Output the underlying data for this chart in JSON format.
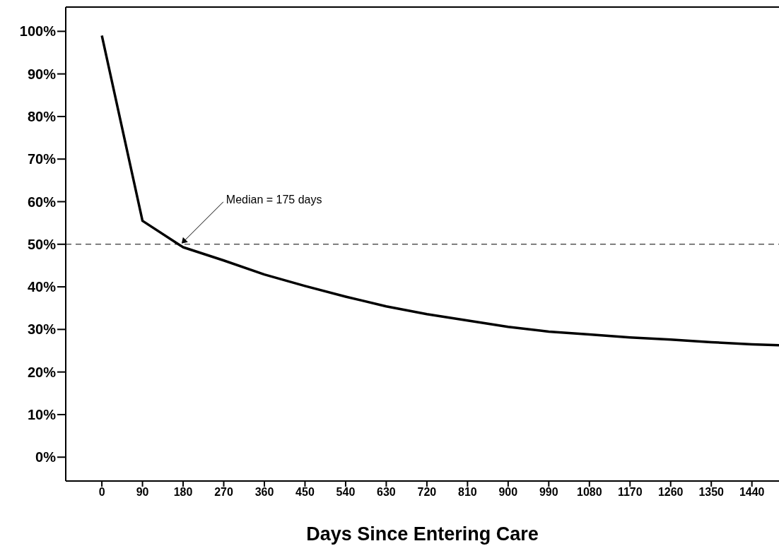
{
  "chart_data": {
    "type": "line",
    "xlabel": "Days Since Entering Care",
    "x": [
      0,
      90,
      180,
      270,
      360,
      450,
      540,
      630,
      720,
      810,
      900,
      990,
      1080,
      1170,
      1260,
      1350,
      1440,
      1500
    ],
    "values": [
      99,
      55.5,
      49.3,
      46.2,
      42.9,
      40.2,
      37.7,
      35.4,
      33.6,
      32.1,
      30.6,
      29.5,
      28.8,
      28.1,
      27.6,
      27.0,
      26.5,
      26.3
    ],
    "color": "#000000",
    "marker": "none",
    "line_style": "solid",
    "xlim": [
      -80,
      1500
    ],
    "xticks": [
      0,
      90,
      180,
      270,
      360,
      450,
      540,
      630,
      720,
      810,
      900,
      990,
      1080,
      1170,
      1260,
      1350,
      1440
    ],
    "ylim": [
      -5.6,
      105.7
    ],
    "yticks": [
      {
        "value": 0,
        "label": "0%"
      },
      {
        "value": 10,
        "label": "10%"
      },
      {
        "value": 20,
        "label": "20%"
      },
      {
        "value": 30,
        "label": "30%"
      },
      {
        "value": 40,
        "label": "40%"
      },
      {
        "value": 50,
        "label": "50%"
      },
      {
        "value": 60,
        "label": "60%"
      },
      {
        "value": 70,
        "label": "70%"
      },
      {
        "value": 80,
        "label": "80%"
      },
      {
        "value": 90,
        "label": "90%"
      },
      {
        "value": 100,
        "label": "100%"
      }
    ],
    "ref_lines": [
      {
        "axis": "y",
        "value": 50,
        "color": "#000000",
        "line_style": "dashed"
      }
    ],
    "annotations": [
      {
        "text": "Median = 175 days",
        "x": 175,
        "y": 50
      }
    ]
  }
}
